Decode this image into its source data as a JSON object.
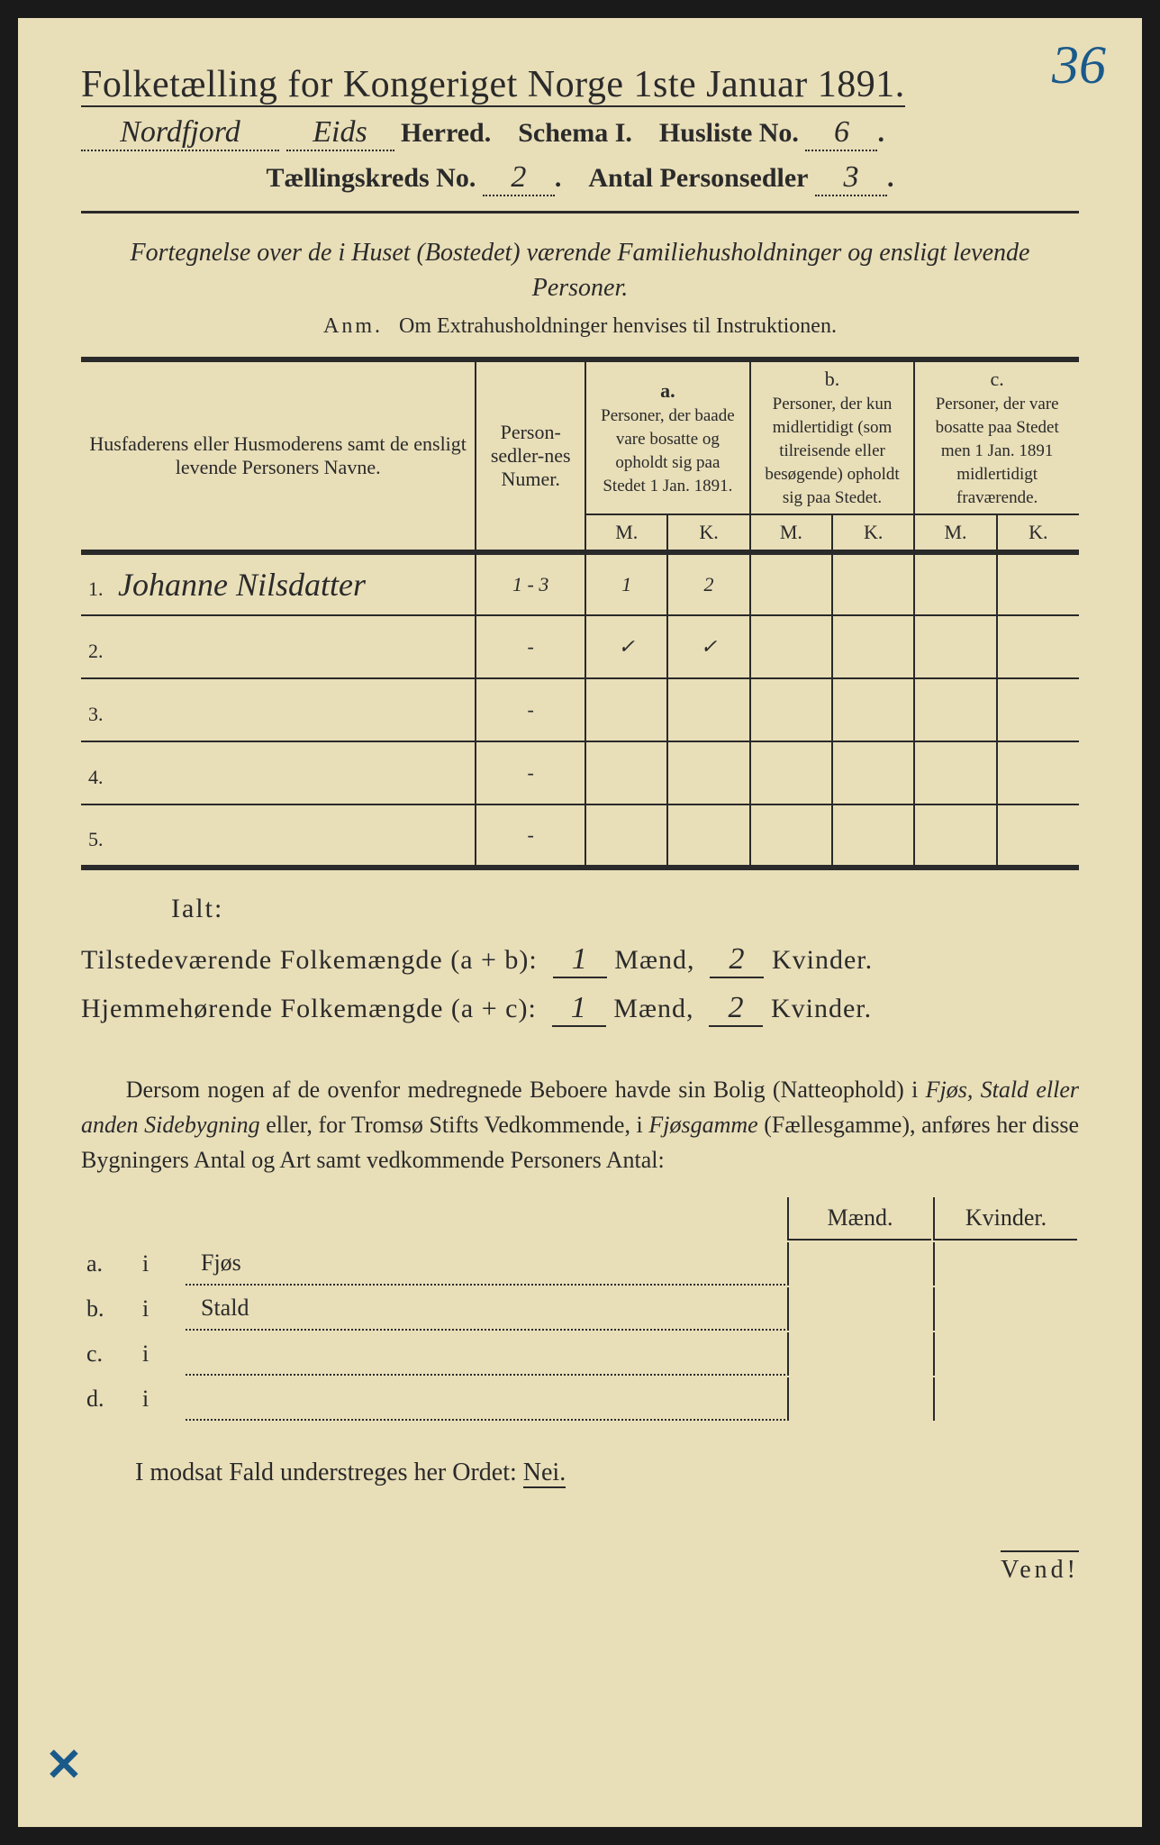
{
  "corner_number": "36",
  "title": "Folketælling for Kongeriget Norge 1ste Januar 1891.",
  "line2": {
    "herred_hand1": "Nordfjord",
    "herred_hand2": "Eids",
    "herred_label": "Herred.",
    "schema": "Schema I.",
    "husliste_label": "Husliste No.",
    "husliste_no": "6"
  },
  "line3": {
    "kreds_label": "Tællingskreds No.",
    "kreds_no": "2",
    "antal_label": "Antal Personsedler",
    "antal_no": "3"
  },
  "fortegnelse": "Fortegnelse over de i Huset (Bostedet) værende Familiehusholdninger og ensligt levende Personer.",
  "anm": {
    "prefix": "Anm.",
    "text": "Om Extrahusholdninger henvises til Instruktionen."
  },
  "table": {
    "headers": {
      "name": "Husfaderens eller Husmoderens samt de ensligt levende Personers Navne.",
      "num": "Person-sedler-nes Numer.",
      "a_label": "a.",
      "a_text": "Personer, der baade vare bosatte og opholdt sig paa Stedet 1 Jan. 1891.",
      "b_label": "b.",
      "b_text": "Personer, der kun midlertidigt (som tilreisende eller besøgende) opholdt sig paa Stedet.",
      "c_label": "c.",
      "c_text": "Personer, der vare bosatte paa Stedet men 1 Jan. 1891 midlertidigt fraværende.",
      "m": "M.",
      "k": "K."
    },
    "rows": [
      {
        "n": "1.",
        "name": "Johanne Nilsdatter",
        "num": "1 - 3",
        "am": "1",
        "ak": "2",
        "bm": "",
        "bk": "",
        "cm": "",
        "ck": ""
      },
      {
        "n": "2.",
        "name": "",
        "num": "-",
        "am": "✓",
        "ak": "✓",
        "bm": "",
        "bk": "",
        "cm": "",
        "ck": ""
      },
      {
        "n": "3.",
        "name": "",
        "num": "-",
        "am": "",
        "ak": "",
        "bm": "",
        "bk": "",
        "cm": "",
        "ck": ""
      },
      {
        "n": "4.",
        "name": "",
        "num": "-",
        "am": "",
        "ak": "",
        "bm": "",
        "bk": "",
        "cm": "",
        "ck": ""
      },
      {
        "n": "5.",
        "name": "",
        "num": "-",
        "am": "",
        "ak": "",
        "bm": "",
        "bk": "",
        "cm": "",
        "ck": ""
      }
    ]
  },
  "ialt": "Ialt:",
  "sum1": {
    "label": "Tilstedeværende Folkemængde (a + b):",
    "m": "1",
    "mlabel": "Mænd,",
    "k": "2",
    "klabel": "Kvinder."
  },
  "sum2": {
    "label": "Hjemmehørende Folkemængde (a + c):",
    "m": "1",
    "mlabel": "Mænd,",
    "k": "2",
    "klabel": "Kvinder."
  },
  "paragraph": "Dersom nogen af de ovenfor medregnede Beboere havde sin Bolig (Natteophold) i Fjøs, Stald eller anden Sidebygning eller, for Tromsø Stifts Vedkommende, i Fjøsgamme (Fællesgamme), anføres her disse Bygningers Antal og Art samt vedkommende Personers Antal:",
  "bottom": {
    "mhead": "Mænd.",
    "khead": "Kvinder.",
    "rows": [
      {
        "l": "a.",
        "i": "i",
        "t": "Fjøs"
      },
      {
        "l": "b.",
        "i": "i",
        "t": "Stald"
      },
      {
        "l": "c.",
        "i": "i",
        "t": ""
      },
      {
        "l": "d.",
        "i": "i",
        "t": ""
      }
    ]
  },
  "nei": {
    "text": "I modsat Fald understreges her Ordet:",
    "word": "Nei."
  },
  "vend": "Vend!",
  "x": "✕",
  "colors": {
    "paper": "#e8deb8",
    "ink": "#2a2a2a",
    "pencil": "#1a5a8a"
  }
}
